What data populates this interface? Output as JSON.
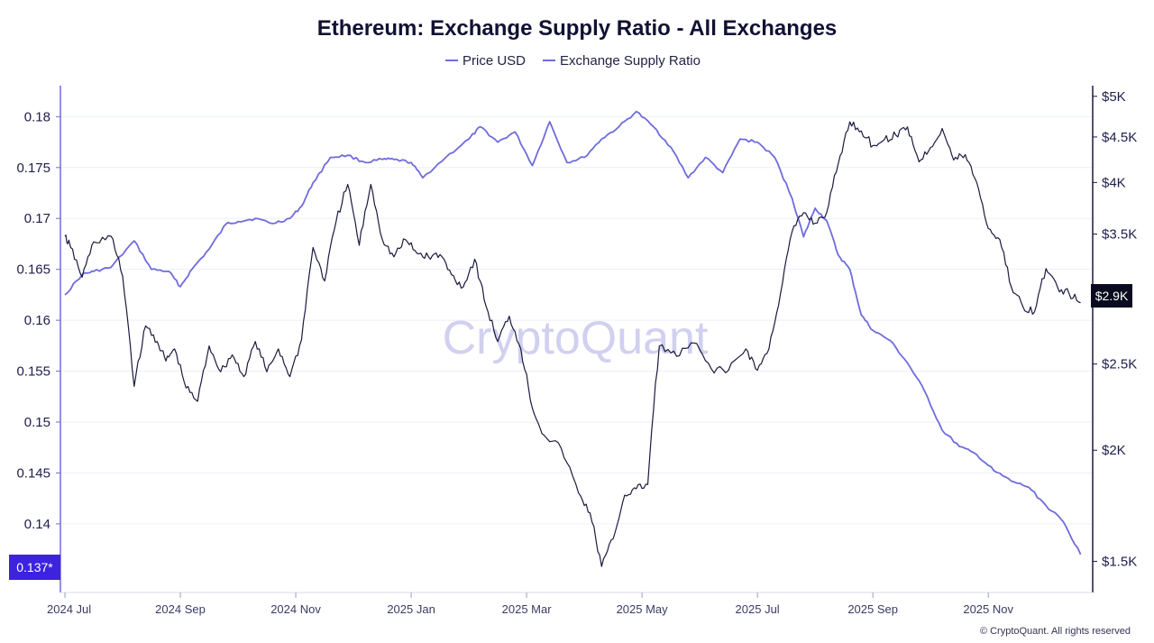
{
  "colors": {
    "ratio": "#6f6cdd",
    "price": "#1b1a3f",
    "grid": "#eceff6",
    "left_axis": "#6f6cdd",
    "right_axis": "#1b1a3f",
    "ratio_badge": "#3d22e0",
    "price_badge": "#0b0b20",
    "watermark": "#c9c8ee"
  },
  "watermark": "CryptoQuant",
  "copyright": "© CryptoQuant. All rights reserved",
  "chart_data": {
    "type": "line",
    "title": "Ethereum: Exchange Supply Ratio - All Exchanges",
    "legend": [
      "Price USD",
      "Exchange Supply Ratio"
    ],
    "x_tick_labels": [
      "2024 Jul",
      "2024 Sep",
      "2024 Nov",
      "2025 Jan",
      "2025 Mar",
      "2025 May",
      "2025 Jul",
      "2025 Sep",
      "2025 Nov"
    ],
    "x_tick_months": [
      0,
      2,
      4,
      6,
      8,
      10,
      12,
      14,
      16
    ],
    "x_range_months": [
      0,
      17.7
    ],
    "left_axis": {
      "label": "Exchange Supply Ratio",
      "range": [
        0.1337,
        0.1826
      ],
      "ticks": [
        0.14,
        0.145,
        0.15,
        0.155,
        0.16,
        0.165,
        0.17,
        0.175,
        0.18
      ],
      "tick_labels": [
        "0.14",
        "0.145",
        "0.15",
        "0.155",
        "0.16",
        "0.165",
        "0.17",
        "0.175",
        "0.18"
      ],
      "current_value_label": "0.137*"
    },
    "right_axis": {
      "label": "Price USD",
      "scale": "log",
      "range": [
        1400,
        5080
      ],
      "ticks": [
        1500,
        2000,
        2500,
        3000,
        3500,
        4000,
        4500,
        5000
      ],
      "tick_labels": [
        "$1.5K",
        "$2K",
        "$2.5K",
        "$3K",
        "$3.5K",
        "$4K",
        "$4.5K",
        "$5K"
      ],
      "current_value_label": "$2.9K"
    },
    "series": [
      {
        "name": "Exchange Supply Ratio",
        "axis": "left",
        "x_months": [
          0,
          0.3,
          0.5,
          0.8,
          1.2,
          1.5,
          1.8,
          2.0,
          2.2,
          2.5,
          2.8,
          3.0,
          3.3,
          3.6,
          3.9,
          4.1,
          4.3,
          4.6,
          4.9,
          5.2,
          5.5,
          5.7,
          6.0,
          6.2,
          6.6,
          7.0,
          7.2,
          7.5,
          7.8,
          8.1,
          8.4,
          8.7,
          9.0,
          9.3,
          9.6,
          9.9,
          10.2,
          10.5,
          10.8,
          11.1,
          11.4,
          11.7,
          12.0,
          12.3,
          12.6,
          12.8,
          13.0,
          13.2,
          13.4,
          13.6,
          13.8,
          14.0,
          14.3,
          14.6,
          14.9,
          15.2,
          15.5,
          15.8,
          16.1,
          16.4,
          16.7,
          17.0,
          17.3,
          17.6
        ],
        "values": [
          0.1625,
          0.1645,
          0.1648,
          0.1652,
          0.1678,
          0.165,
          0.1648,
          0.1633,
          0.165,
          0.167,
          0.1695,
          0.1697,
          0.17,
          0.1695,
          0.17,
          0.1712,
          0.1735,
          0.176,
          0.1762,
          0.1755,
          0.1758,
          0.1758,
          0.1755,
          0.174,
          0.176,
          0.1778,
          0.179,
          0.1775,
          0.1785,
          0.1752,
          0.1795,
          0.1755,
          0.176,
          0.1778,
          0.179,
          0.1805,
          0.179,
          0.177,
          0.174,
          0.176,
          0.1745,
          0.1778,
          0.1775,
          0.176,
          0.172,
          0.1682,
          0.171,
          0.1698,
          0.1664,
          0.165,
          0.1605,
          0.159,
          0.158,
          0.1558,
          0.153,
          0.1492,
          0.1476,
          0.1468,
          0.1452,
          0.1442,
          0.1436,
          0.1418,
          0.1402,
          0.137
        ]
      },
      {
        "name": "Price USD",
        "axis": "right",
        "x_months": [
          0,
          0.1,
          0.3,
          0.5,
          0.8,
          1.0,
          1.2,
          1.4,
          1.6,
          1.75,
          1.9,
          2.1,
          2.3,
          2.5,
          2.7,
          2.9,
          3.1,
          3.3,
          3.5,
          3.7,
          3.9,
          4.1,
          4.3,
          4.5,
          4.7,
          4.9,
          5.1,
          5.3,
          5.5,
          5.7,
          5.9,
          6.1,
          6.3,
          6.5,
          6.7,
          6.9,
          7.1,
          7.3,
          7.5,
          7.7,
          7.9,
          8.1,
          8.3,
          8.6,
          8.9,
          9.1,
          9.3,
          9.5,
          9.7,
          9.9,
          10.1,
          10.3,
          10.6,
          10.9,
          11.2,
          11.5,
          11.8,
          12.0,
          12.2,
          12.4,
          12.6,
          12.8,
          13.0,
          13.2,
          13.4,
          13.6,
          13.8,
          14.0,
          14.2,
          14.4,
          14.6,
          14.8,
          15.0,
          15.2,
          15.4,
          15.6,
          15.8,
          16.0,
          16.2,
          16.4,
          16.6,
          16.8,
          17.0,
          17.2,
          17.4,
          17.6
        ],
        "values": [
          3480,
          3380,
          3130,
          3430,
          3480,
          3140,
          2360,
          2760,
          2650,
          2520,
          2600,
          2350,
          2270,
          2620,
          2450,
          2560,
          2420,
          2650,
          2450,
          2600,
          2420,
          2660,
          3380,
          3100,
          3620,
          3980,
          3400,
          3980,
          3450,
          3300,
          3450,
          3330,
          3300,
          3320,
          3150,
          3050,
          3280,
          2900,
          2650,
          2830,
          2600,
          2230,
          2080,
          2010,
          1790,
          1700,
          1480,
          1590,
          1780,
          1810,
          1830,
          2620,
          2550,
          2640,
          2470,
          2460,
          2600,
          2460,
          2600,
          3000,
          3520,
          3700,
          3600,
          3700,
          4200,
          4680,
          4570,
          4400,
          4470,
          4520,
          4620,
          4220,
          4380,
          4600,
          4240,
          4300,
          4000,
          3550,
          3450,
          3050,
          2900,
          2860,
          3200,
          3050,
          3000,
          2930
        ]
      }
    ]
  }
}
